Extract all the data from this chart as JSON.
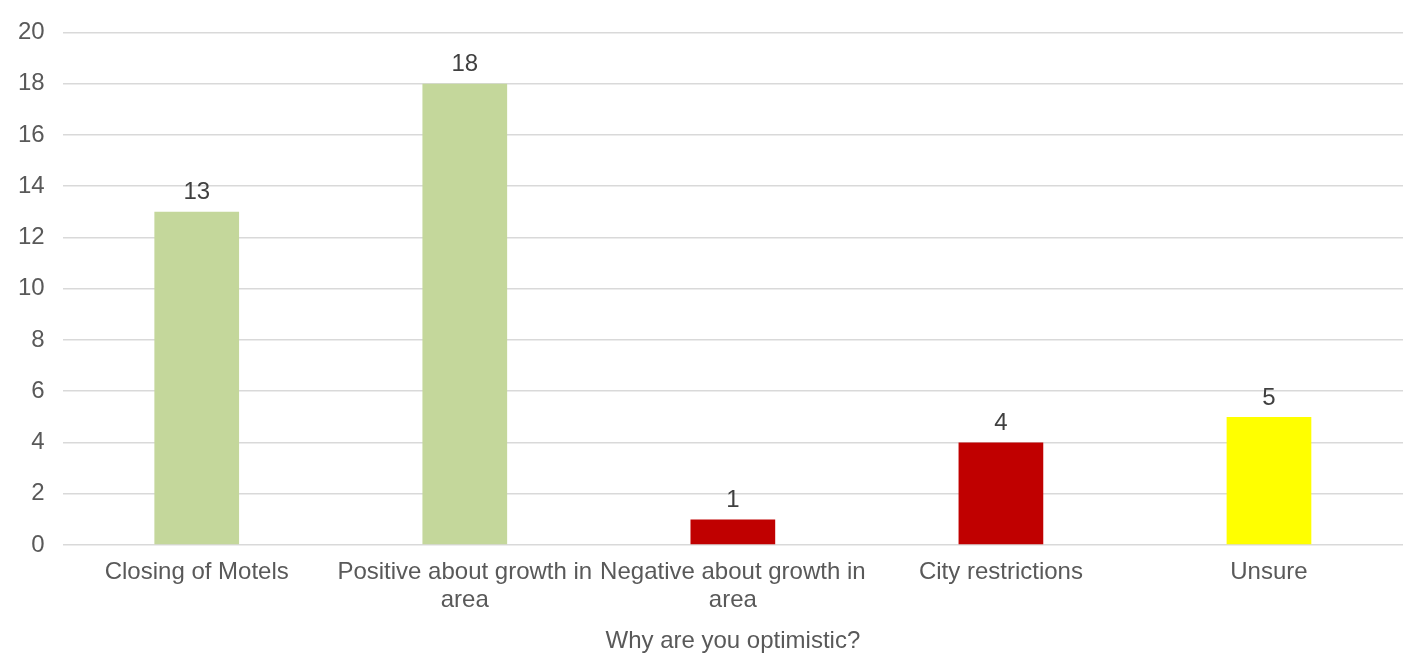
{
  "chart_data": {
    "type": "bar",
    "categories": [
      "Closing of Motels",
      "Positive about growth in area",
      "Negative about growth in area",
      "City restrictions",
      "Unsure"
    ],
    "values": [
      13,
      18,
      1,
      4,
      5
    ],
    "colors": [
      "#c4d79b",
      "#c4d79b",
      "#c00000",
      "#c00000",
      "#ffff00"
    ],
    "xlabel": "Why are you optimistic?",
    "ylim": [
      0,
      20
    ],
    "yticks": [
      0,
      2,
      4,
      6,
      8,
      10,
      12,
      14,
      16,
      18,
      20
    ],
    "grid": "y",
    "data_labels": true
  }
}
